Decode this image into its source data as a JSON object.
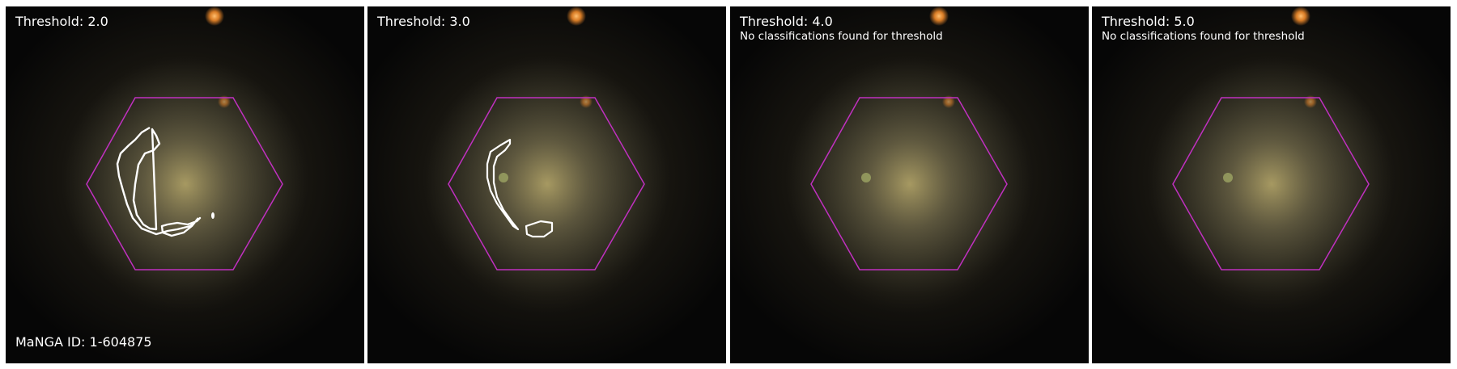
{
  "panels": [
    {
      "threshold_text": "Threshold: 2.0",
      "note": "",
      "show_contours": "both"
    },
    {
      "threshold_text": "Threshold: 3.0",
      "note": "",
      "show_contours": "narrow"
    },
    {
      "threshold_text": "Threshold: 4.0",
      "note": "No classifications found for threshold",
      "show_contours": "none"
    },
    {
      "threshold_text": "Threshold: 5.0",
      "note": "No classifications found for threshold",
      "show_contours": "none"
    }
  ],
  "manga_id_text": "MaNGA ID: 1-604875",
  "colors": {
    "hexagon": "#c030c0",
    "contour": "#ffffff",
    "galaxy_core": "#b7a86a",
    "star": "#f08a2a"
  }
}
